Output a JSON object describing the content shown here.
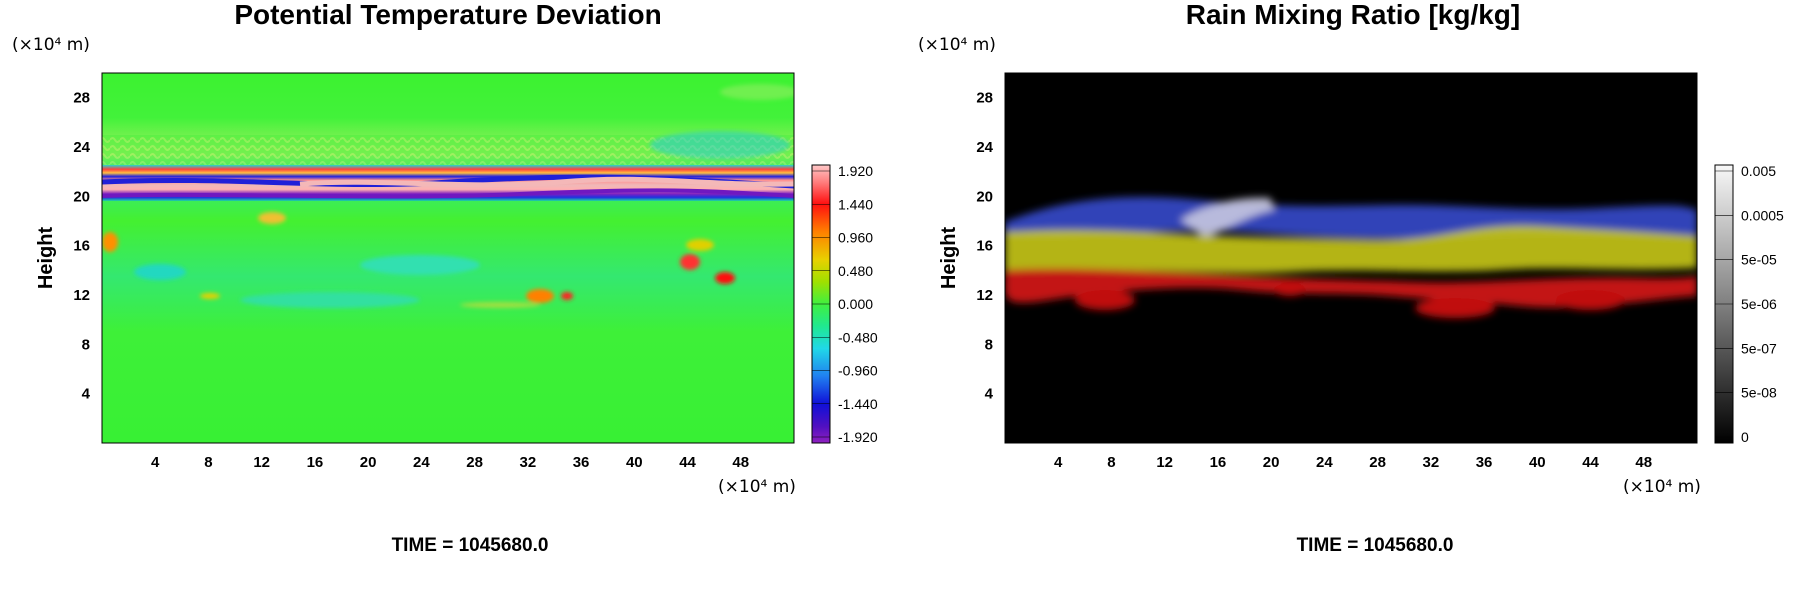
{
  "chart_data": [
    {
      "type": "heatmap",
      "title": "Potential Temperature Deviation",
      "ylabel": "Height",
      "xlabel": "",
      "x_unit": "(×10⁴ m)",
      "y_unit": "(×10⁴ m)",
      "x_ticks": [
        4,
        8,
        12,
        16,
        20,
        24,
        28,
        32,
        36,
        40,
        44,
        48
      ],
      "y_ticks": [
        4,
        8,
        12,
        16,
        20,
        24,
        28
      ],
      "xlim": [
        0,
        52
      ],
      "ylim": [
        0,
        30
      ],
      "colorbar": {
        "tick_labels": [
          "1.920",
          "1.440",
          "0.960",
          "0.480",
          "0.000",
          "-0.480",
          "-0.960",
          "-1.440",
          "-1.920"
        ],
        "range": [
          -2.0,
          2.0
        ]
      },
      "features": [
        {
          "kind": "layer",
          "y_center": 20.8,
          "value": "strong alternating positive/negative band"
        },
        {
          "kind": "wave_region",
          "y_range": [
            22,
            26
          ],
          "value": "weak oscillations"
        },
        {
          "kind": "patches",
          "y_range": [
            10,
            18
          ],
          "value": "scattered positive anomalies up to ~1.4"
        }
      ],
      "footer": "TIME = 1045680.0"
    },
    {
      "type": "heatmap",
      "title": "Rain Mixing Ratio [kg/kg]",
      "ylabel": "Height",
      "xlabel": "",
      "x_unit": "(×10⁴ m)",
      "y_unit": "(×10⁴ m)",
      "x_ticks": [
        4,
        8,
        12,
        16,
        20,
        24,
        28,
        32,
        36,
        40,
        44,
        48
      ],
      "y_ticks": [
        4,
        8,
        12,
        16,
        20,
        24,
        28
      ],
      "xlim": [
        0,
        52
      ],
      "ylim": [
        0,
        30
      ],
      "colorbar": {
        "tick_labels": [
          "0.005",
          "0.0005",
          "5e-05",
          "5e-06",
          "5e-07",
          "5e-08",
          "0"
        ],
        "scale": "log"
      },
      "features": [
        {
          "kind": "band",
          "y_range": [
            16,
            20
          ],
          "color": "#3a4fd8",
          "value": "blue"
        },
        {
          "kind": "band",
          "y_range": [
            13,
            17
          ],
          "color": "#c8c81a",
          "value": "yellow"
        },
        {
          "kind": "band",
          "y_range": [
            10,
            14
          ],
          "color": "#d81818",
          "value": "red"
        },
        {
          "kind": "plume",
          "x_range": [
            14,
            20
          ],
          "y_range": [
            16,
            19
          ],
          "color": "#c8c8e0",
          "value": "pale plume"
        }
      ],
      "footer": "TIME = 1045680.0"
    }
  ]
}
